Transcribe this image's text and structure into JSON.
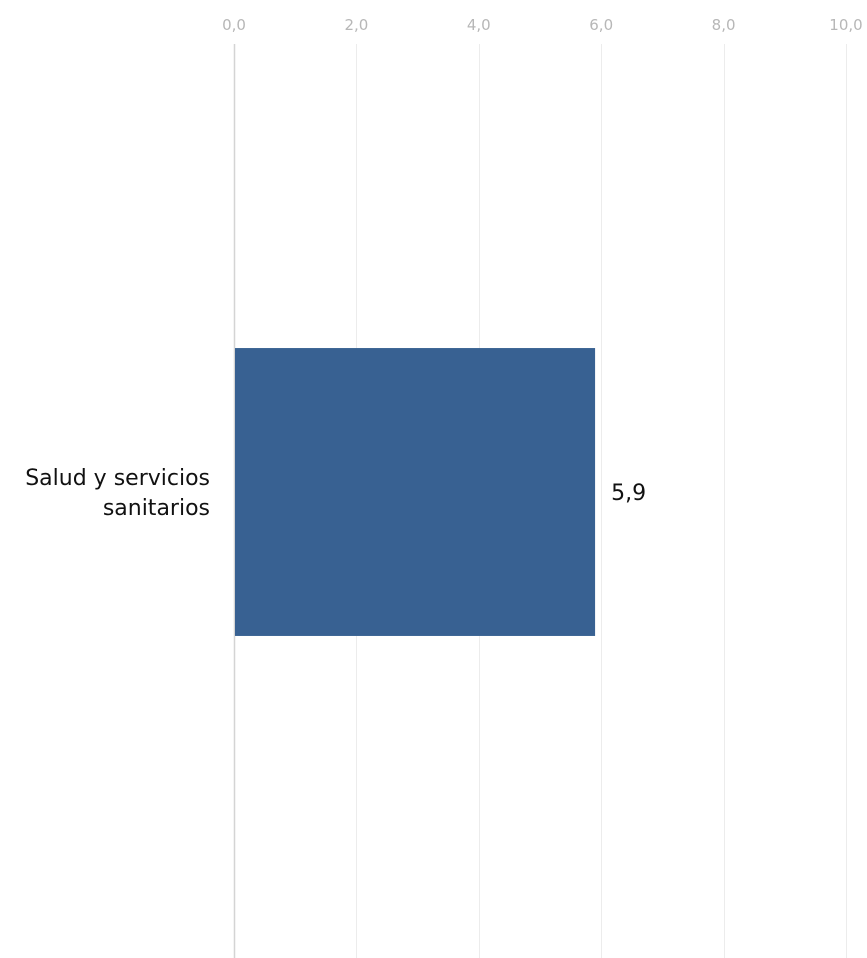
{
  "chart_data": {
    "type": "bar",
    "orientation": "horizontal",
    "categories": [
      "Salud y servicios sanitarios"
    ],
    "category_label_lines": [
      [
        "Salud y servicios",
        "sanitarios"
      ]
    ],
    "values": [
      5.9
    ],
    "data_labels": [
      "5,9"
    ],
    "title": "",
    "xlabel": "",
    "ylabel": "",
    "xlim": [
      0,
      10
    ],
    "ticks": [
      0,
      2,
      4,
      6,
      8,
      10
    ],
    "tick_labels": [
      "0,0",
      "2,0",
      "4,0",
      "6,0",
      "8,0",
      "10,0"
    ],
    "axis_position": "top",
    "grid": true,
    "legend": "none",
    "bar_color": "#386192",
    "grid_color": "#ececec",
    "axis_color": "#d4d4d4",
    "tick_label_color": "#b7b7b7"
  }
}
